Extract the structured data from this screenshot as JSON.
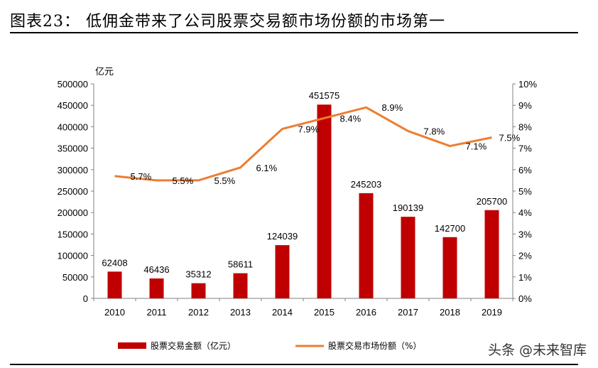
{
  "title": "图表23：  低佣金带来了公司股票交易额市场份额的市场第一",
  "watermark": "头条 @未来智库",
  "colors": {
    "bar": "#c00000",
    "line": "#ed7d31",
    "axis": "#808080"
  },
  "chart_data": {
    "type": "bar",
    "categories": [
      "2010",
      "2011",
      "2012",
      "2013",
      "2014",
      "2015",
      "2016",
      "2017",
      "2018",
      "2019"
    ],
    "series": [
      {
        "name": "股票交易金额（亿元）",
        "type": "bar",
        "axis": "left",
        "values": [
          62408,
          46436,
          35312,
          58611,
          124039,
          451575,
          245203,
          190139,
          142700,
          205700
        ],
        "labels": [
          "62408",
          "46436",
          "35312",
          "58611",
          "124039",
          "451575",
          "245203",
          "190139",
          "142700",
          "205700"
        ]
      },
      {
        "name": "股票交易市场份额（%）",
        "type": "line",
        "axis": "right",
        "values": [
          5.7,
          5.5,
          5.5,
          6.1,
          7.9,
          8.4,
          8.9,
          7.8,
          7.1,
          7.5
        ],
        "labels": [
          "5.7%",
          "5.5%",
          "5.5%",
          "6.1%",
          "7.9%",
          "8.4%",
          "8.9%",
          "7.8%",
          "7.1%",
          "7.5%"
        ]
      }
    ],
    "y_left": {
      "unit_label": "亿元",
      "ylim": [
        0,
        500000
      ],
      "ticks": [
        "0",
        "50000",
        "100000",
        "150000",
        "200000",
        "250000",
        "300000",
        "350000",
        "400000",
        "450000",
        "500000"
      ]
    },
    "y_right": {
      "ylim": [
        0,
        10
      ],
      "ticks": [
        "0%",
        "1%",
        "2%",
        "3%",
        "4%",
        "5%",
        "6%",
        "7%",
        "8%",
        "9%",
        "10%"
      ]
    },
    "legend_position": "bottom",
    "grid": false
  }
}
